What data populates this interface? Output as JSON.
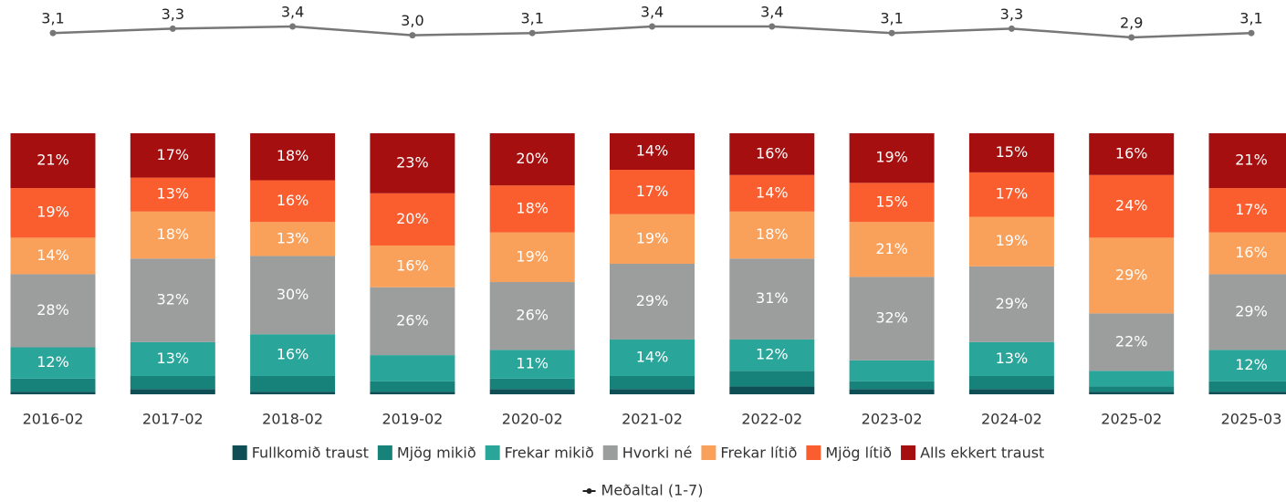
{
  "chart_data": {
    "type": "stacked-bar",
    "categories": [
      "2016-02",
      "2017-02",
      "2018-02",
      "2019-02",
      "2020-02",
      "2021-02",
      "2022-02",
      "2023-02",
      "2024-02",
      "2025-02",
      "2025-03"
    ],
    "ylim": [
      0,
      100
    ],
    "y2lim": [
      2.5,
      3.5
    ],
    "series": [
      {
        "name": "Fullkomið traust",
        "color": "#0d4f55",
        "values": [
          1,
          2,
          1,
          1,
          2,
          2,
          3,
          2,
          2,
          1,
          1
        ],
        "value_labels": [
          null,
          null,
          null,
          null,
          null,
          null,
          null,
          null,
          null,
          null,
          null
        ]
      },
      {
        "name": "Mjög mikið",
        "color": "#17827a",
        "values": [
          5,
          5,
          6,
          4,
          4,
          5,
          6,
          3,
          5,
          2,
          4
        ],
        "value_labels": [
          null,
          null,
          null,
          null,
          null,
          null,
          null,
          null,
          null,
          null,
          null
        ]
      },
      {
        "name": "Frekar mikið",
        "color": "#2aa59a",
        "values": [
          12,
          13,
          16,
          10,
          11,
          14,
          12,
          8,
          13,
          6,
          12
        ],
        "value_labels": [
          "12%",
          "13%",
          "16%",
          null,
          "11%",
          "14%",
          "12%",
          null,
          "13%",
          null,
          "12%"
        ]
      },
      {
        "name": "Hvorki né",
        "color": "#9c9e9d",
        "values": [
          28,
          32,
          30,
          26,
          26,
          29,
          31,
          32,
          29,
          22,
          29
        ],
        "value_labels": [
          "28%",
          "32%",
          "30%",
          "26%",
          "26%",
          "29%",
          "31%",
          "32%",
          "29%",
          "22%",
          "29%"
        ]
      },
      {
        "name": "Frekar lítið",
        "color": "#f9a05a",
        "values": [
          14,
          18,
          13,
          16,
          19,
          19,
          18,
          21,
          19,
          29,
          16
        ],
        "value_labels": [
          "14%",
          "18%",
          "13%",
          "16%",
          "19%",
          "19%",
          "18%",
          "21%",
          "19%",
          "29%",
          "16%"
        ]
      },
      {
        "name": "Mjög lítið",
        "color": "#fb5e2e",
        "values": [
          19,
          13,
          16,
          20,
          18,
          17,
          14,
          15,
          17,
          24,
          17
        ],
        "value_labels": [
          "19%",
          "13%",
          "16%",
          "20%",
          "18%",
          "17%",
          "14%",
          "15%",
          "17%",
          "24%",
          "17%"
        ]
      },
      {
        "name": "Alls ekkert traust",
        "color": "#a50f0f",
        "values": [
          21,
          17,
          18,
          23,
          20,
          14,
          16,
          19,
          15,
          16,
          21
        ],
        "value_labels": [
          "21%",
          "17%",
          "18%",
          "23%",
          "20%",
          "14%",
          "16%",
          "19%",
          "15%",
          "16%",
          "21%"
        ]
      },
      {
        "name": "Meðaltal (1-7)",
        "color": "#777777",
        "type": "line",
        "axis": "y2",
        "values": [
          3.1,
          3.3,
          3.4,
          3.0,
          3.1,
          3.4,
          3.4,
          3.1,
          3.3,
          2.9,
          3.1
        ],
        "value_labels": [
          "3,1",
          "3,3",
          "3,4",
          "3,0",
          "3,1",
          "3,4",
          "3,4",
          "3,1",
          "3,3",
          "2,9",
          "3,1"
        ]
      }
    ]
  }
}
